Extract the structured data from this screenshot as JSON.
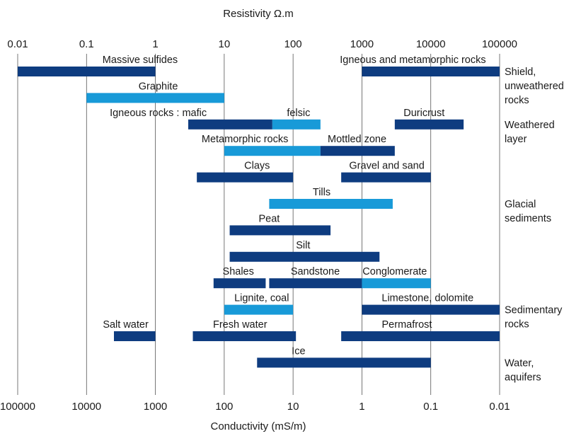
{
  "colors": {
    "dark": "#0e3c80",
    "light": "#189ad8"
  },
  "chart_data": {
    "type": "bar",
    "orientation": "horizontal-range",
    "title": "",
    "x_top_label": "Resistivity Ω.m",
    "x_bottom_label": "Conductivity (mS/m)",
    "x_scale": "log",
    "resistivity_range": [
      0.01,
      100000
    ],
    "top_ticks": [
      "0.01",
      "0.1",
      "1",
      "10",
      "100",
      "1000",
      "10000",
      "100000"
    ],
    "bottom_ticks": [
      "100000",
      "10000",
      "1000",
      "100",
      "10",
      "1",
      "0.1",
      "0.01"
    ],
    "grid": true,
    "bars": [
      {
        "label": "Massive sulfides",
        "from": 0.01,
        "to": 1,
        "color": "dark",
        "row": 0,
        "label_at": 0.6
      },
      {
        "label": "Igneous and metamorphic rocks",
        "from": 1000,
        "to": 100000,
        "color": "dark",
        "row": 0,
        "label_at": 5500
      },
      {
        "label": "Graphite",
        "from": 0.1,
        "to": 10,
        "color": "light",
        "row": 1,
        "label_at": 1.1
      },
      {
        "label": "Igneous rocks : mafic",
        "from": 3,
        "to": 50,
        "color": "dark",
        "row": 2,
        "label_at": 1.1
      },
      {
        "label": "felsic",
        "from": 50,
        "to": 250,
        "color": "light",
        "row": 2,
        "label_at": 120
      },
      {
        "label": "Duricrust",
        "from": 3000,
        "to": 30000,
        "color": "dark",
        "row": 2,
        "label_at": 8000
      },
      {
        "label": "Metamorphic rocks",
        "from": 10,
        "to": 250,
        "color": "light",
        "row": 3,
        "label_at": 20
      },
      {
        "label": "Mottled zone",
        "from": 250,
        "to": 3000,
        "color": "dark",
        "row": 3,
        "label_at": 850
      },
      {
        "label": "Clays",
        "from": 4,
        "to": 100,
        "color": "dark",
        "row": 4,
        "label_at": 30
      },
      {
        "label": "Gravel and sand",
        "from": 500,
        "to": 10000,
        "color": "dark",
        "row": 4,
        "label_at": 2300
      },
      {
        "label": "Tills",
        "from": 45,
        "to": 2800,
        "color": "light",
        "row": 5,
        "label_at": 260
      },
      {
        "label": "Peat",
        "from": 12,
        "to": 350,
        "color": "dark",
        "row": 6,
        "label_at": 45
      },
      {
        "label": "Silt",
        "from": 12,
        "to": 1800,
        "color": "dark",
        "row": 7,
        "label_at": 140
      },
      {
        "label": "Shales",
        "from": 7,
        "to": 40,
        "color": "dark",
        "row": 8,
        "label_at": 16
      },
      {
        "label": "Sandstone",
        "from": 45,
        "to": 1000,
        "color": "dark",
        "row": 8,
        "label_at": 210
      },
      {
        "label": "Conglomerate",
        "from": 1000,
        "to": 10000,
        "color": "light",
        "row": 8,
        "label_at": 3000
      },
      {
        "label": "Lignite, coal",
        "from": 10,
        "to": 100,
        "color": "light",
        "row": 9,
        "label_at": 35
      },
      {
        "label": "Limestone, dolomite",
        "from": 1000,
        "to": 100000,
        "color": "dark",
        "row": 9,
        "label_at": 9000
      },
      {
        "label": "Salt water",
        "from": 0.25,
        "to": 1,
        "color": "dark",
        "row": 10,
        "label_at": 0.37
      },
      {
        "label": "Fresh water",
        "from": 3.5,
        "to": 110,
        "color": "dark",
        "row": 10,
        "label_at": 17
      },
      {
        "label": "Permafrost",
        "from": 500,
        "to": 100000,
        "color": "dark",
        "row": 10,
        "label_at": 4500
      },
      {
        "label": "Ice",
        "from": 30,
        "to": 10000,
        "color": "dark",
        "row": 11,
        "label_at": 120
      }
    ],
    "groups": [
      {
        "lines": [
          "Shield,",
          "unweathered",
          "rocks"
        ],
        "row": 0
      },
      {
        "lines": [
          "Weathered",
          "layer"
        ],
        "row": 2
      },
      {
        "lines": [
          "Glacial",
          "sediments"
        ],
        "row": 5
      },
      {
        "lines": [
          "Sedimentary",
          "rocks"
        ],
        "row": 9
      },
      {
        "lines": [
          "Water,",
          "aquifers"
        ],
        "row": 11
      }
    ]
  }
}
